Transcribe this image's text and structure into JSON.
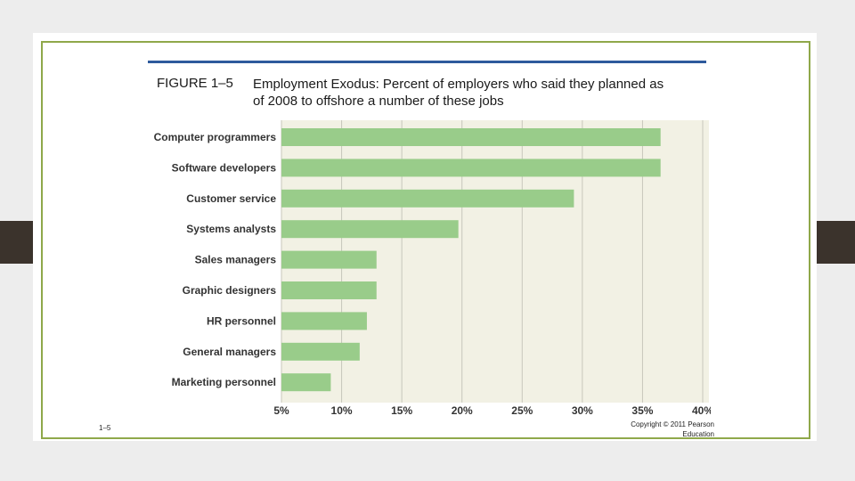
{
  "slide": {
    "figure_label": "FIGURE 1–5",
    "figure_title": "Employment Exodus: Percent of employers who said they planned as of 2008 to offshore a number of these jobs",
    "slide_number": "1–5",
    "copyright": "Copyright © 2011 Pearson Education"
  },
  "colors": {
    "bar": "#99cc8a",
    "plot_bg": "#f2f1e4",
    "gridline": "#c8c7bb",
    "accent_rule": "#2e5a9c",
    "border": "#8fa84a"
  },
  "chart_data": {
    "type": "bar",
    "orientation": "horizontal",
    "title": "",
    "xlabel": "",
    "ylabel": "",
    "categories": [
      "Computer programmers",
      "Software developers",
      "Customer service",
      "Systems analysts",
      "Sales managers",
      "Graphic designers",
      "HR personnel",
      "General managers",
      "Marketing personnel"
    ],
    "values": [
      36.5,
      36.5,
      29.3,
      19.7,
      12.9,
      12.9,
      12.1,
      11.5,
      9.1
    ],
    "xlim": [
      5,
      40
    ],
    "x_ticks": [
      5,
      10,
      15,
      20,
      25,
      30,
      35,
      40
    ],
    "x_tick_labels": [
      "5%",
      "10%",
      "15%",
      "20%",
      "25%",
      "30%",
      "35%",
      "40%"
    ],
    "grid": true,
    "legend": "none"
  }
}
